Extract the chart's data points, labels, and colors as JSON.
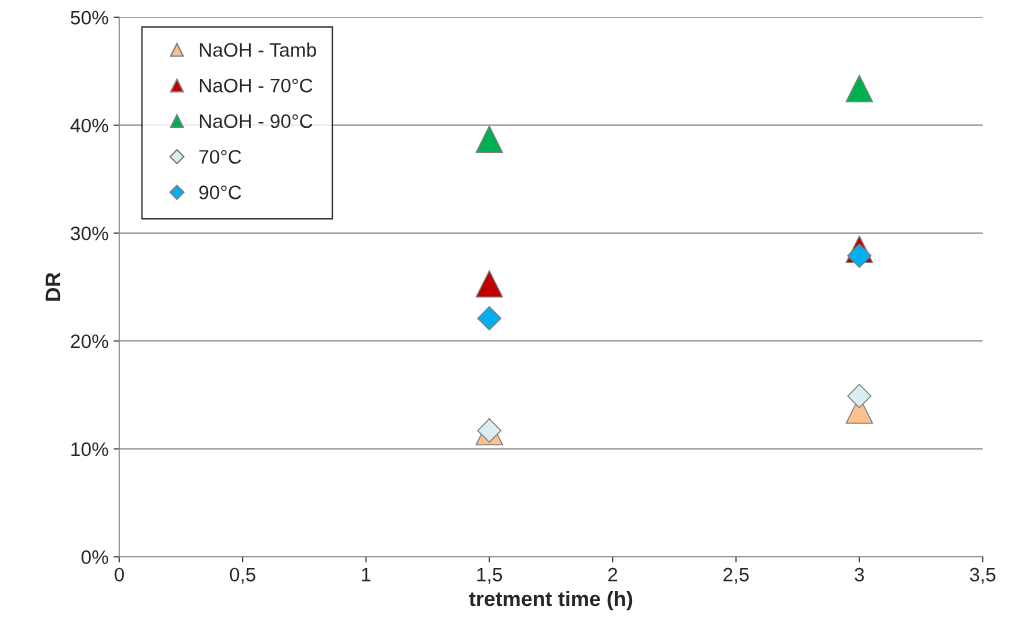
{
  "chart_data": {
    "type": "scatter",
    "xlabel": "tretment time (h)",
    "ylabel": "DR",
    "x": [
      1.5,
      3
    ],
    "series": [
      {
        "name": "NaOH - Tamb",
        "color": "#fac090",
        "marker": "triangle",
        "values": [
          11.6,
          13.6
        ]
      },
      {
        "name": "NaOH - 70°C",
        "color": "#c00000",
        "marker": "triangle",
        "values": [
          25.3,
          28.5
        ]
      },
      {
        "name": "NaOH - 90°C",
        "color": "#00b050",
        "marker": "triangle",
        "values": [
          38.7,
          43.4
        ]
      },
      {
        "name": "70°C",
        "color": "#daeef3",
        "marker": "diamond",
        "values": [
          11.7,
          14.9
        ]
      },
      {
        "name": "90°C",
        "color": "#00b0f0",
        "marker": "diamond",
        "values": [
          22.1,
          27.9
        ]
      }
    ],
    "xlim": [
      0,
      3.5
    ],
    "xticks": [
      0,
      {
        "value": 0.5,
        "label": "0,5"
      },
      1,
      {
        "value": 1.5,
        "label": "1,5"
      },
      2,
      {
        "value": 2.5,
        "label": "2,5"
      },
      3,
      {
        "value": 3.5,
        "label": "3,5"
      }
    ],
    "ylim": [
      0,
      50
    ],
    "yticks": [
      {
        "value": 0,
        "label": "0%"
      },
      {
        "value": 10,
        "label": "10%"
      },
      {
        "value": 20,
        "label": "20%"
      },
      {
        "value": 30,
        "label": "30%"
      },
      {
        "value": 40,
        "label": "40%"
      },
      {
        "value": 50,
        "label": "50%"
      }
    ],
    "grid": "y",
    "legend": "top left"
  }
}
